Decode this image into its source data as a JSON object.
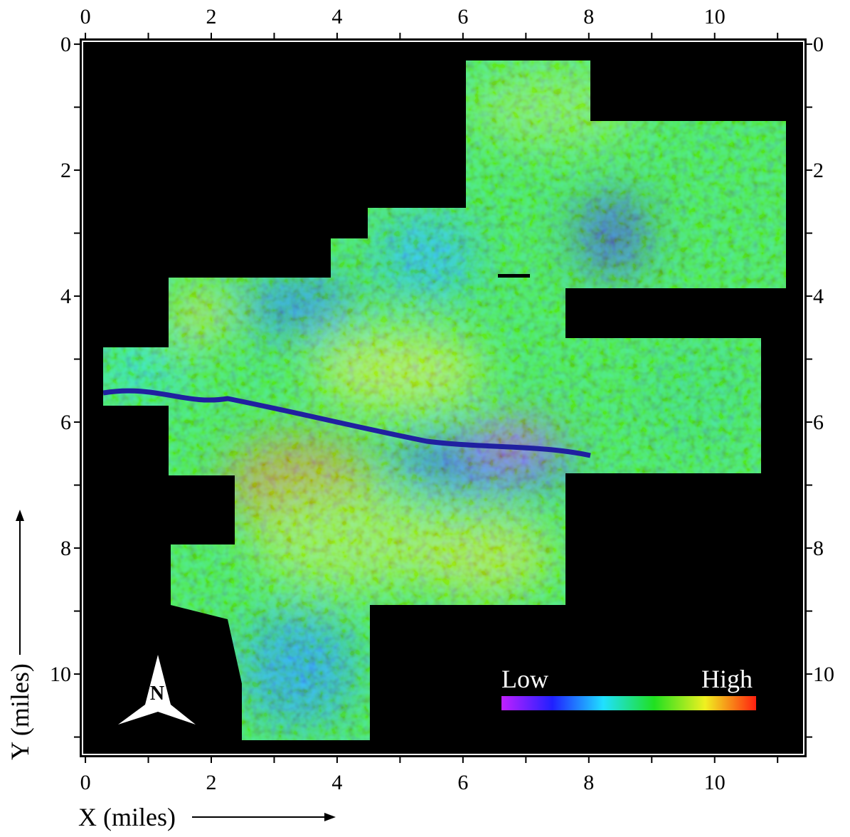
{
  "chart_data": {
    "type": "image",
    "xlabel": "X (miles)",
    "ylabel": "Y (miles)",
    "xlim": [
      -0.08,
      11.45
    ],
    "ylim": [
      -0.08,
      11.31
    ],
    "y_inverted": true,
    "xticks": [
      0,
      2,
      4,
      6,
      8,
      10
    ],
    "yticks": [
      0,
      2,
      4,
      6,
      8,
      10
    ],
    "minor_xticks": [
      1,
      3,
      5,
      7,
      9,
      11
    ],
    "minor_yticks": [
      1,
      3,
      5,
      7,
      9,
      11
    ],
    "colorbar_labels": [
      "Low",
      "High"
    ],
    "north_label": "N"
  }
}
